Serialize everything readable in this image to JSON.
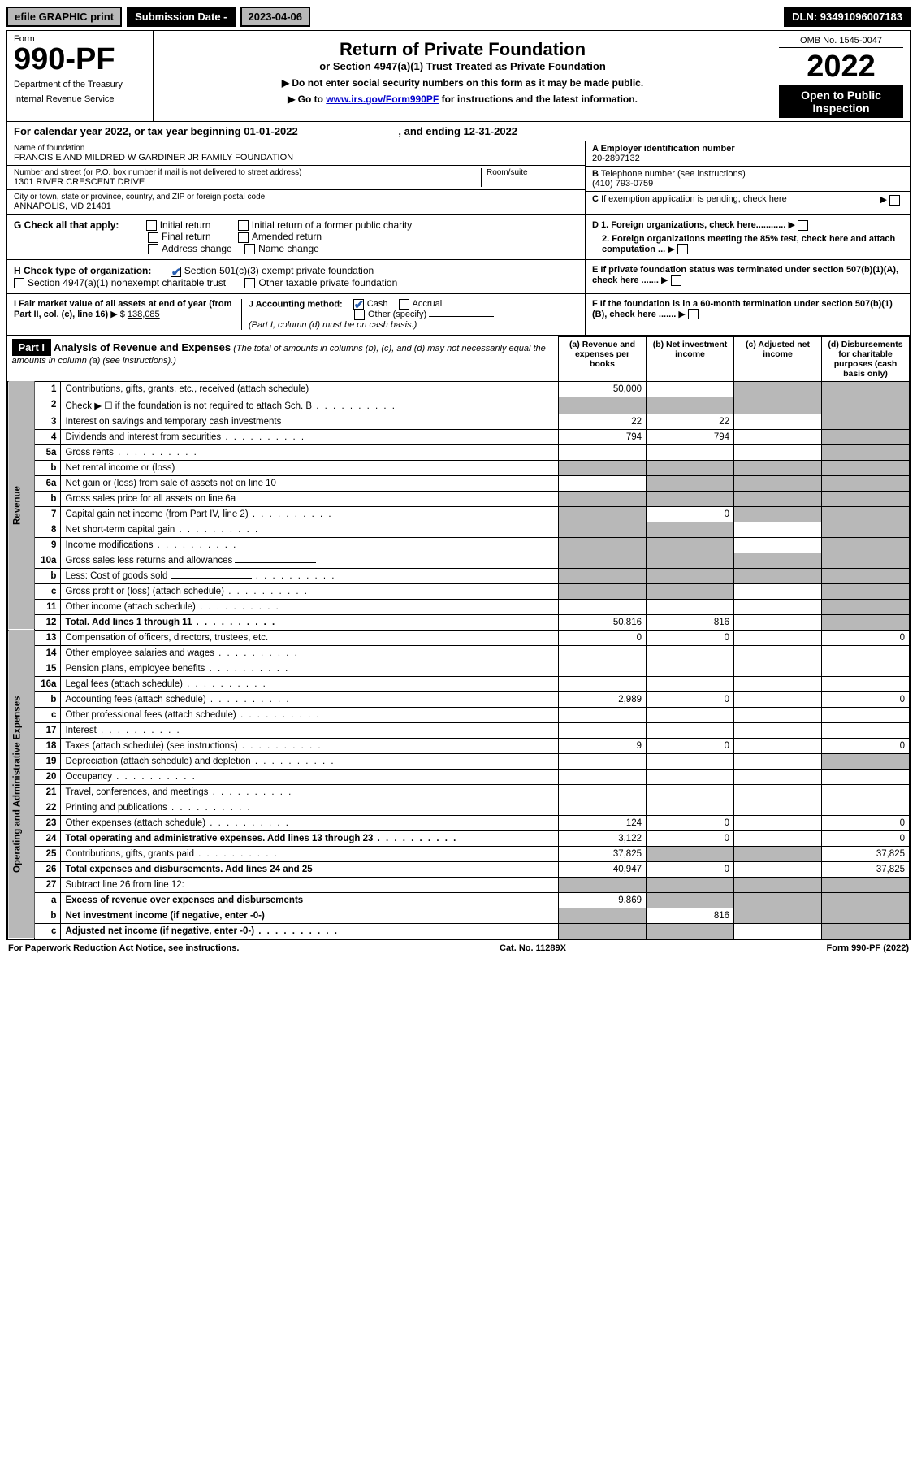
{
  "top": {
    "efile": "efile GRAPHIC print",
    "subdate_label": "Submission Date - ",
    "subdate_val": "2023-04-06",
    "dln": "DLN: 93491096007183"
  },
  "header": {
    "form_label": "Form",
    "form_num": "990-PF",
    "dept1": "Department of the Treasury",
    "dept2": "Internal Revenue Service",
    "title": "Return of Private Foundation",
    "subtitle": "or Section 4947(a)(1) Trust Treated as Private Foundation",
    "instr1": "▶ Do not enter social security numbers on this form as it may be made public.",
    "instr2": "▶ Go to ",
    "instr2_link": "www.irs.gov/Form990PF",
    "instr2_tail": " for instructions and the latest information.",
    "omb": "OMB No. 1545-0047",
    "year": "2022",
    "open": "Open to Public Inspection"
  },
  "cal": {
    "text1": "For calendar year 2022, or tax year beginning ",
    "begin": "01-01-2022",
    "text2": ", and ending ",
    "end": "12-31-2022"
  },
  "entity": {
    "name_lbl": "Name of foundation",
    "name": "FRANCIS E AND MILDRED W GARDINER JR FAMILY FOUNDATION",
    "addr_lbl": "Number and street (or P.O. box number if mail is not delivered to street address)",
    "addr": "1301 RIVER CRESCENT DRIVE",
    "room_lbl": "Room/suite",
    "room": "",
    "city_lbl": "City or town, state or province, country, and ZIP or foreign postal code",
    "city": "ANNAPOLIS, MD  21401",
    "a_lbl": "A Employer identification number",
    "a_val": "20-2897132",
    "b_lbl": "B",
    "b_text": " Telephone number (see instructions)",
    "b_val": "(410) 793-0759",
    "c_lbl": "C",
    "c_text": " If exemption application is pending, check here"
  },
  "g": {
    "label": "G Check all that apply:",
    "opts": [
      "Initial return",
      "Initial return of a former public charity",
      "Final return",
      "Amended return",
      "Address change",
      "Name change"
    ]
  },
  "d": {
    "d1": "D 1. Foreign organizations, check here............",
    "d2": "2. Foreign organizations meeting the 85% test, check here and attach computation ..."
  },
  "h": {
    "label": "H Check type of organization:",
    "opt1": "Section 501(c)(3) exempt private foundation",
    "opt2": "Section 4947(a)(1) nonexempt charitable trust",
    "opt3": "Other taxable private foundation"
  },
  "e": {
    "text": "E  If private foundation status was terminated under section 507(b)(1)(A), check here ......."
  },
  "i": {
    "label": "I Fair market value of all assets at end of year (from Part II, col. (c), line 16)",
    "val": "138,085"
  },
  "j": {
    "label": "J Accounting method:",
    "opt1": "Cash",
    "opt2": "Accrual",
    "opt3": "Other (specify)",
    "note": "(Part I, column (d) must be on cash basis.)"
  },
  "f": {
    "text": "F  If the foundation is in a 60-month termination under section 507(b)(1)(B), check here ......."
  },
  "part1": {
    "label": "Part I",
    "title": "Analysis of Revenue and Expenses",
    "title_note": " (The total of amounts in columns (b), (c), and (d) may not necessarily equal the amounts in column (a) (see instructions).)",
    "col_a": "(a) Revenue and expenses per books",
    "col_b": "(b) Net investment income",
    "col_c": "(c) Adjusted net income",
    "col_d": "(d) Disbursements for charitable purposes (cash basis only)"
  },
  "side": {
    "revenue": "Revenue",
    "expenses": "Operating and Administrative Expenses"
  },
  "rows": [
    {
      "n": "1",
      "d": "Contributions, gifts, grants, etc., received (attach schedule)",
      "a": "50,000",
      "b": "",
      "c": "g",
      "dd": "g"
    },
    {
      "n": "2",
      "d": "Check ▶ ☐ if the foundation is not required to attach Sch. B",
      "dots": true,
      "a": "g",
      "b": "g",
      "c": "g",
      "dd": "g"
    },
    {
      "n": "3",
      "d": "Interest on savings and temporary cash investments",
      "a": "22",
      "b": "22",
      "c": "",
      "dd": "g"
    },
    {
      "n": "4",
      "d": "Dividends and interest from securities",
      "dots": true,
      "a": "794",
      "b": "794",
      "c": "",
      "dd": "g"
    },
    {
      "n": "5a",
      "d": "Gross rents",
      "dots": true,
      "a": "",
      "b": "",
      "c": "",
      "dd": "g"
    },
    {
      "n": "b",
      "d": "Net rental income or (loss)",
      "inline": true,
      "a": "g",
      "b": "g",
      "c": "g",
      "dd": "g"
    },
    {
      "n": "6a",
      "d": "Net gain or (loss) from sale of assets not on line 10",
      "a": "",
      "b": "g",
      "c": "g",
      "dd": "g"
    },
    {
      "n": "b",
      "d": "Gross sales price for all assets on line 6a",
      "inline": true,
      "a": "g",
      "b": "g",
      "c": "g",
      "dd": "g"
    },
    {
      "n": "7",
      "d": "Capital gain net income (from Part IV, line 2)",
      "dots": true,
      "a": "g",
      "b": "0",
      "c": "g",
      "dd": "g"
    },
    {
      "n": "8",
      "d": "Net short-term capital gain",
      "dots": true,
      "a": "g",
      "b": "g",
      "c": "",
      "dd": "g"
    },
    {
      "n": "9",
      "d": "Income modifications",
      "dots": true,
      "a": "g",
      "b": "g",
      "c": "",
      "dd": "g"
    },
    {
      "n": "10a",
      "d": "Gross sales less returns and allowances",
      "inline": true,
      "a": "g",
      "b": "g",
      "c": "g",
      "dd": "g"
    },
    {
      "n": "b",
      "d": "Less: Cost of goods sold",
      "dots": true,
      "inline": true,
      "a": "g",
      "b": "g",
      "c": "g",
      "dd": "g"
    },
    {
      "n": "c",
      "d": "Gross profit or (loss) (attach schedule)",
      "dots": true,
      "a": "g",
      "b": "g",
      "c": "",
      "dd": "g"
    },
    {
      "n": "11",
      "d": "Other income (attach schedule)",
      "dots": true,
      "a": "",
      "b": "",
      "c": "",
      "dd": "g"
    },
    {
      "n": "12",
      "d": "Total. Add lines 1 through 11",
      "dots": true,
      "bold": true,
      "a": "50,816",
      "b": "816",
      "c": "",
      "dd": "g"
    },
    {
      "n": "13",
      "d": "Compensation of officers, directors, trustees, etc.",
      "a": "0",
      "b": "0",
      "c": "",
      "dd": "0"
    },
    {
      "n": "14",
      "d": "Other employee salaries and wages",
      "dots": true,
      "a": "",
      "b": "",
      "c": "",
      "dd": ""
    },
    {
      "n": "15",
      "d": "Pension plans, employee benefits",
      "dots": true,
      "a": "",
      "b": "",
      "c": "",
      "dd": ""
    },
    {
      "n": "16a",
      "d": "Legal fees (attach schedule)",
      "dots": true,
      "a": "",
      "b": "",
      "c": "",
      "dd": ""
    },
    {
      "n": "b",
      "d": "Accounting fees (attach schedule)",
      "dots": true,
      "a": "2,989",
      "b": "0",
      "c": "",
      "dd": "0"
    },
    {
      "n": "c",
      "d": "Other professional fees (attach schedule)",
      "dots": true,
      "a": "",
      "b": "",
      "c": "",
      "dd": ""
    },
    {
      "n": "17",
      "d": "Interest",
      "dots": true,
      "a": "",
      "b": "",
      "c": "",
      "dd": ""
    },
    {
      "n": "18",
      "d": "Taxes (attach schedule) (see instructions)",
      "dots": true,
      "a": "9",
      "b": "0",
      "c": "",
      "dd": "0"
    },
    {
      "n": "19",
      "d": "Depreciation (attach schedule) and depletion",
      "dots": true,
      "a": "",
      "b": "",
      "c": "",
      "dd": "g"
    },
    {
      "n": "20",
      "d": "Occupancy",
      "dots": true,
      "a": "",
      "b": "",
      "c": "",
      "dd": ""
    },
    {
      "n": "21",
      "d": "Travel, conferences, and meetings",
      "dots": true,
      "a": "",
      "b": "",
      "c": "",
      "dd": ""
    },
    {
      "n": "22",
      "d": "Printing and publications",
      "dots": true,
      "a": "",
      "b": "",
      "c": "",
      "dd": ""
    },
    {
      "n": "23",
      "d": "Other expenses (attach schedule)",
      "dots": true,
      "a": "124",
      "b": "0",
      "c": "",
      "dd": "0"
    },
    {
      "n": "24",
      "d": "Total operating and administrative expenses. Add lines 13 through 23",
      "dots": true,
      "bold": true,
      "a": "3,122",
      "b": "0",
      "c": "",
      "dd": "0"
    },
    {
      "n": "25",
      "d": "Contributions, gifts, grants paid",
      "dots": true,
      "a": "37,825",
      "b": "g",
      "c": "g",
      "dd": "37,825"
    },
    {
      "n": "26",
      "d": "Total expenses and disbursements. Add lines 24 and 25",
      "bold": true,
      "a": "40,947",
      "b": "0",
      "c": "",
      "dd": "37,825"
    },
    {
      "n": "27",
      "d": "Subtract line 26 from line 12:",
      "a": "g",
      "b": "g",
      "c": "g",
      "dd": "g"
    },
    {
      "n": "a",
      "d": "Excess of revenue over expenses and disbursements",
      "bold": true,
      "a": "9,869",
      "b": "g",
      "c": "g",
      "dd": "g"
    },
    {
      "n": "b",
      "d": "Net investment income (if negative, enter -0-)",
      "bold": true,
      "a": "g",
      "b": "816",
      "c": "g",
      "dd": "g"
    },
    {
      "n": "c",
      "d": "Adjusted net income (if negative, enter -0-)",
      "dots": true,
      "bold": true,
      "a": "g",
      "b": "g",
      "c": "",
      "dd": "g"
    }
  ],
  "footer": {
    "left": "For Paperwork Reduction Act Notice, see instructions.",
    "mid": "Cat. No. 11289X",
    "right": "Form 990-PF (2022)"
  },
  "colors": {
    "grey": "#b8b8b8",
    "link": "#0000cc",
    "check": "#2a5fb0"
  }
}
